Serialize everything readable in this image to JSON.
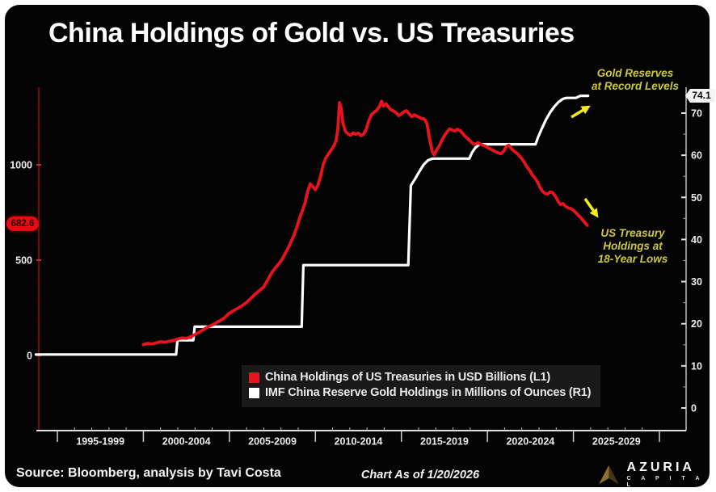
{
  "page": {
    "title": "China Holdings of Gold vs. US Treasuries"
  },
  "chart_data": {
    "type": "line",
    "title": "China Holdings of Gold vs. US Treasuries",
    "x_axis": {
      "tick_labels": [
        "1995-1999",
        "2000-2004",
        "2005-2009",
        "2010-2014",
        "2015-2019",
        "2020-2024",
        "2025-2029"
      ],
      "domain_years": [
        1993.7,
        2030.2
      ],
      "grid": false
    },
    "left_axis": {
      "ticks": [
        0,
        500,
        1000
      ],
      "range": [
        0,
        1400
      ],
      "units": "USD Billions"
    },
    "right_axis": {
      "ticks": [
        0,
        10,
        20,
        30,
        40,
        50,
        60,
        70
      ],
      "range": [
        0,
        76
      ],
      "units": "Millions of Ounces"
    },
    "end_labels": {
      "left": "682.6",
      "right": "74.1"
    },
    "annotations": [
      {
        "id": "gold-note",
        "lines": [
          "Gold Reserves",
          "at Record Levels"
        ]
      },
      {
        "id": "treasury-note",
        "lines": [
          "US Treasury",
          "Holdings at",
          "18-Year Lows"
        ]
      }
    ],
    "series": [
      {
        "id": "treasuries-line",
        "name": "China Holdings of US Treasuries in USD Billions (L1)",
        "axis": "left",
        "color": "#e8131d",
        "points": [
          [
            2000.0,
            57
          ],
          [
            2000.25,
            63
          ],
          [
            2000.5,
            60
          ],
          [
            2000.75,
            66
          ],
          [
            2001.0,
            72
          ],
          [
            2001.25,
            70
          ],
          [
            2001.5,
            74
          ],
          [
            2001.75,
            79
          ],
          [
            2002.0,
            86
          ],
          [
            2002.25,
            92
          ],
          [
            2002.5,
            90
          ],
          [
            2002.75,
            98
          ],
          [
            2003.0,
            110
          ],
          [
            2003.25,
            122
          ],
          [
            2003.5,
            136
          ],
          [
            2003.75,
            150
          ],
          [
            2004.0,
            160
          ],
          [
            2004.25,
            172
          ],
          [
            2004.5,
            185
          ],
          [
            2004.75,
            200
          ],
          [
            2005.0,
            222
          ],
          [
            2005.25,
            235
          ],
          [
            2005.5,
            248
          ],
          [
            2005.75,
            262
          ],
          [
            2006.0,
            278
          ],
          [
            2006.25,
            300
          ],
          [
            2006.5,
            322
          ],
          [
            2006.75,
            340
          ],
          [
            2007.0,
            360
          ],
          [
            2007.25,
            400
          ],
          [
            2007.5,
            440
          ],
          [
            2007.75,
            468
          ],
          [
            2008.0,
            495
          ],
          [
            2008.25,
            535
          ],
          [
            2008.5,
            580
          ],
          [
            2008.75,
            630
          ],
          [
            2008.95,
            680
          ],
          [
            2009.1,
            724
          ],
          [
            2009.25,
            760
          ],
          [
            2009.4,
            800
          ],
          [
            2009.55,
            860
          ],
          [
            2009.7,
            900
          ],
          [
            2009.85,
            885
          ],
          [
            2010.0,
            870
          ],
          [
            2010.15,
            895
          ],
          [
            2010.3,
            940
          ],
          [
            2010.45,
            1000
          ],
          [
            2010.6,
            1035
          ],
          [
            2010.75,
            1055
          ],
          [
            2010.9,
            1075
          ],
          [
            2011.05,
            1095
          ],
          [
            2011.2,
            1125
          ],
          [
            2011.3,
            1185
          ],
          [
            2011.4,
            1326
          ],
          [
            2011.5,
            1295
          ],
          [
            2011.6,
            1220
          ],
          [
            2011.75,
            1175
          ],
          [
            2011.9,
            1162
          ],
          [
            2012.05,
            1155
          ],
          [
            2012.2,
            1168
          ],
          [
            2012.35,
            1160
          ],
          [
            2012.5,
            1166
          ],
          [
            2012.65,
            1153
          ],
          [
            2012.8,
            1160
          ],
          [
            2012.95,
            1185
          ],
          [
            2013.1,
            1230
          ],
          [
            2013.25,
            1262
          ],
          [
            2013.4,
            1275
          ],
          [
            2013.55,
            1285
          ],
          [
            2013.7,
            1302
          ],
          [
            2013.85,
            1334
          ],
          [
            2013.95,
            1308
          ],
          [
            2014.1,
            1320
          ],
          [
            2014.25,
            1302
          ],
          [
            2014.4,
            1288
          ],
          [
            2014.55,
            1282
          ],
          [
            2014.7,
            1272
          ],
          [
            2014.85,
            1258
          ],
          [
            2015.0,
            1268
          ],
          [
            2015.15,
            1278
          ],
          [
            2015.3,
            1284
          ],
          [
            2015.45,
            1268
          ],
          [
            2015.6,
            1252
          ],
          [
            2015.75,
            1262
          ],
          [
            2015.9,
            1255
          ],
          [
            2016.05,
            1248
          ],
          [
            2016.2,
            1242
          ],
          [
            2016.35,
            1240
          ],
          [
            2016.5,
            1212
          ],
          [
            2016.65,
            1130
          ],
          [
            2016.8,
            1068
          ],
          [
            2016.9,
            1052
          ],
          [
            2017.05,
            1078
          ],
          [
            2017.2,
            1098
          ],
          [
            2017.35,
            1128
          ],
          [
            2017.5,
            1152
          ],
          [
            2017.65,
            1172
          ],
          [
            2017.8,
            1188
          ],
          [
            2017.95,
            1182
          ],
          [
            2018.1,
            1178
          ],
          [
            2018.25,
            1186
          ],
          [
            2018.4,
            1180
          ],
          [
            2018.55,
            1166
          ],
          [
            2018.7,
            1150
          ],
          [
            2018.85,
            1138
          ],
          [
            2019.0,
            1124
          ],
          [
            2019.15,
            1112
          ],
          [
            2019.3,
            1108
          ],
          [
            2019.45,
            1116
          ],
          [
            2019.6,
            1108
          ],
          [
            2019.75,
            1102
          ],
          [
            2019.9,
            1098
          ],
          [
            2020.05,
            1088
          ],
          [
            2020.2,
            1082
          ],
          [
            2020.35,
            1074
          ],
          [
            2020.5,
            1068
          ],
          [
            2020.65,
            1062
          ],
          [
            2020.8,
            1058
          ],
          [
            2020.95,
            1072
          ],
          [
            2021.1,
            1096
          ],
          [
            2021.25,
            1102
          ],
          [
            2021.4,
            1084
          ],
          [
            2021.55,
            1072
          ],
          [
            2021.7,
            1062
          ],
          [
            2021.85,
            1048
          ],
          [
            2022.0,
            1032
          ],
          [
            2022.15,
            1012
          ],
          [
            2022.3,
            988
          ],
          [
            2022.45,
            972
          ],
          [
            2022.6,
            948
          ],
          [
            2022.75,
            932
          ],
          [
            2022.9,
            912
          ],
          [
            2023.05,
            882
          ],
          [
            2023.2,
            862
          ],
          [
            2023.35,
            850
          ],
          [
            2023.5,
            846
          ],
          [
            2023.65,
            858
          ],
          [
            2023.8,
            854
          ],
          [
            2023.95,
            836
          ],
          [
            2024.1,
            810
          ],
          [
            2024.25,
            792
          ],
          [
            2024.4,
            796
          ],
          [
            2024.55,
            782
          ],
          [
            2024.7,
            774
          ],
          [
            2024.85,
            770
          ],
          [
            2025.0,
            762
          ],
          [
            2025.15,
            748
          ],
          [
            2025.3,
            734
          ],
          [
            2025.45,
            720
          ],
          [
            2025.6,
            704
          ],
          [
            2025.8,
            682.6
          ]
        ]
      },
      {
        "id": "gold-line",
        "name": "IMF China Reserve Gold Holdings in Millions of Ounces (R1)",
        "axis": "right",
        "color": "#ffffff",
        "points": [
          [
            1993.75,
            12.7
          ],
          [
            2001.9,
            12.7
          ],
          [
            2001.98,
            16.1
          ],
          [
            2002.9,
            16.1
          ],
          [
            2002.98,
            19.3
          ],
          [
            2009.2,
            19.3
          ],
          [
            2009.3,
            33.9
          ],
          [
            2015.4,
            33.9
          ],
          [
            2015.55,
            52.8
          ],
          [
            2015.8,
            54.4
          ],
          [
            2016.05,
            56.2
          ],
          [
            2016.3,
            57.8
          ],
          [
            2016.55,
            58.8
          ],
          [
            2016.8,
            59.2
          ],
          [
            2018.95,
            59.2
          ],
          [
            2019.1,
            60.6
          ],
          [
            2019.3,
            61.8
          ],
          [
            2019.55,
            62.6
          ],
          [
            2022.8,
            62.6
          ],
          [
            2022.95,
            64.3
          ],
          [
            2023.15,
            66.2
          ],
          [
            2023.4,
            68.4
          ],
          [
            2023.65,
            70.2
          ],
          [
            2023.9,
            71.6
          ],
          [
            2024.15,
            72.7
          ],
          [
            2024.4,
            73.4
          ],
          [
            2024.6,
            73.6
          ],
          [
            2025.15,
            73.6
          ],
          [
            2025.4,
            74.1
          ],
          [
            2025.85,
            74.1
          ]
        ]
      }
    ],
    "legend_position": "bottom-center"
  },
  "footer": {
    "source": "Source: Bloomberg, analysis by Tavi Costa",
    "as_of": "Chart As of 1/20/2026",
    "brand": {
      "name": "AZURIA",
      "sub": "C A P I T A L"
    }
  },
  "colors": {
    "accent_red": "#e8131d",
    "line_white": "#ffffff",
    "annotation_yellow": "#cdc83c",
    "arrow_yellow": "#f0ea1e",
    "background": "#040404"
  }
}
